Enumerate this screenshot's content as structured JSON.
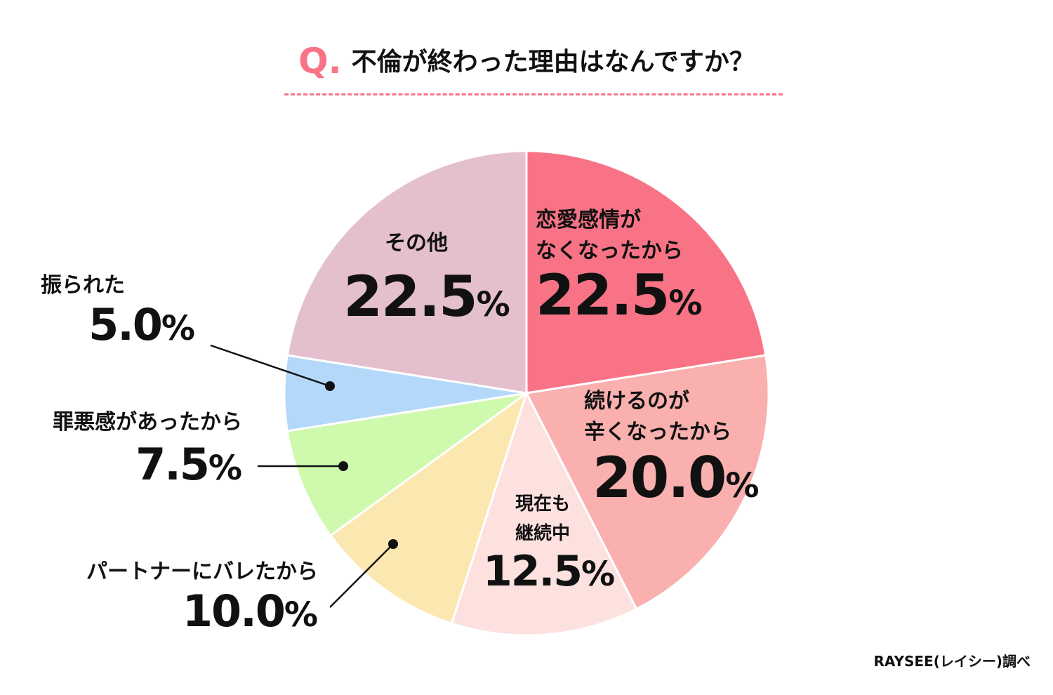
{
  "title": {
    "q_mark": "Q.",
    "text": "不倫が終わった理由はなんですか？"
  },
  "source": "RAYSEE(レイシー)調べ",
  "chart_data": {
    "type": "pie",
    "title": "不倫が終わった理由はなんですか？",
    "start": "top, clockwise",
    "slices": [
      {
        "label": "恋愛感情が\nなくなったから",
        "value": 22.5,
        "value_label": "22.5%",
        "color": "#F97386"
      },
      {
        "label": "続けるのが\n辛くなったから",
        "value": 20.0,
        "value_label": "20.0%",
        "color": "#F9B0AF"
      },
      {
        "label": "現在も\n継続中",
        "value": 12.5,
        "value_label": "12.5%",
        "color": "#FCE1DF"
      },
      {
        "label": "パートナーにバレたから",
        "value": 10.0,
        "value_label": "10.0%",
        "color": "#FBE8B0"
      },
      {
        "label": "罪悪感があったから",
        "value": 7.5,
        "value_label": "7.5%",
        "color": "#CFFAAE"
      },
      {
        "label": "振られた",
        "value": 5.0,
        "value_label": "5.0%",
        "color": "#B3D8FA"
      },
      {
        "label": "その他",
        "value": 22.5,
        "value_label": "22.5%",
        "color": "#E4BFCD"
      }
    ]
  }
}
